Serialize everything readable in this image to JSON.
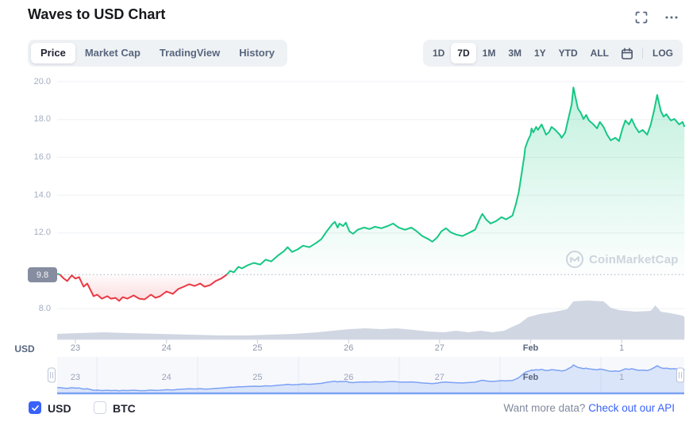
{
  "header": {
    "title": "Waves to USD Chart",
    "fullscreen_icon": "fullscreen-icon",
    "more_icon": "more-options-icon"
  },
  "tabs": {
    "items": [
      "Price",
      "Market Cap",
      "TradingView",
      "History"
    ],
    "active": "Price"
  },
  "ranges": {
    "items": [
      "1D",
      "7D",
      "1M",
      "3M",
      "1Y",
      "YTD",
      "ALL"
    ],
    "active": "7D",
    "log_label": "LOG",
    "calendar_icon": "calendar-icon"
  },
  "watermark": {
    "label": "CoinMarketCap"
  },
  "footer": {
    "currencies": [
      {
        "label": "USD",
        "checked": true
      },
      {
        "label": "BTC",
        "checked": false
      }
    ],
    "prompt": "Want more data?",
    "link_label": "Check out our API"
  },
  "colors": {
    "up": "#16c784",
    "down": "#ea3943",
    "accent_blue": "#3861fb",
    "volume": "#ced4e0",
    "nav_line": "#7ca2f4",
    "grid": "#eef0f4",
    "open_dotted": "#a9b2c4",
    "badge_bg": "#868da0"
  },
  "chart_data": {
    "type": "line",
    "title": "Waves to USD Chart",
    "unit": "USD",
    "legend_position": "none",
    "grid": true,
    "open_price": 9.8,
    "open_price_label": "9.8",
    "ylim": [
      7.4,
      20.6
    ],
    "xlim_days": [
      -0.2,
      6.69
    ],
    "y_ticks": [
      {
        "value": 20,
        "label": "20.0"
      },
      {
        "value": 18,
        "label": "18.0"
      },
      {
        "value": 16,
        "label": "16.0"
      },
      {
        "value": 14,
        "label": "14.0"
      },
      {
        "value": 12,
        "label": "12.0"
      },
      {
        "value": 8,
        "label": "8.0"
      }
    ],
    "x_ticks": [
      {
        "t": 0,
        "label": "23"
      },
      {
        "t": 1,
        "label": "24"
      },
      {
        "t": 2,
        "label": "25"
      },
      {
        "t": 3,
        "label": "26"
      },
      {
        "t": 4,
        "label": "27"
      },
      {
        "t": 5,
        "label": "Feb",
        "emphasis": true
      },
      {
        "t": 6,
        "label": "1"
      }
    ],
    "price_series": {
      "name": "WAVES/USD price",
      "points": [
        [
          -0.2,
          9.85
        ],
        [
          -0.17,
          9.8
        ],
        [
          -0.13,
          9.6
        ],
        [
          -0.09,
          9.46
        ],
        [
          -0.04,
          9.76
        ],
        [
          0.0,
          9.59
        ],
        [
          0.04,
          9.67
        ],
        [
          0.09,
          9.16
        ],
        [
          0.13,
          9.33
        ],
        [
          0.16,
          9.04
        ],
        [
          0.2,
          8.66
        ],
        [
          0.24,
          8.74
        ],
        [
          0.29,
          8.53
        ],
        [
          0.35,
          8.66
        ],
        [
          0.39,
          8.53
        ],
        [
          0.44,
          8.57
        ],
        [
          0.48,
          8.41
        ],
        [
          0.52,
          8.61
        ],
        [
          0.57,
          8.53
        ],
        [
          0.64,
          8.7
        ],
        [
          0.7,
          8.53
        ],
        [
          0.76,
          8.49
        ],
        [
          0.83,
          8.74
        ],
        [
          0.88,
          8.57
        ],
        [
          0.93,
          8.66
        ],
        [
          1.0,
          8.91
        ],
        [
          1.07,
          8.78
        ],
        [
          1.13,
          9.04
        ],
        [
          1.19,
          9.16
        ],
        [
          1.25,
          9.29
        ],
        [
          1.31,
          9.2
        ],
        [
          1.37,
          9.33
        ],
        [
          1.42,
          9.16
        ],
        [
          1.48,
          9.25
        ],
        [
          1.54,
          9.46
        ],
        [
          1.6,
          9.59
        ],
        [
          1.66,
          9.79
        ],
        [
          1.7,
          10.0
        ],
        [
          1.74,
          9.92
        ],
        [
          1.79,
          10.21
        ],
        [
          1.83,
          10.13
        ],
        [
          1.89,
          10.29
        ],
        [
          1.96,
          10.42
        ],
        [
          2.03,
          10.33
        ],
        [
          2.09,
          10.59
        ],
        [
          2.15,
          10.5
        ],
        [
          2.22,
          10.79
        ],
        [
          2.29,
          11.04
        ],
        [
          2.33,
          11.25
        ],
        [
          2.38,
          11.0
        ],
        [
          2.44,
          11.13
        ],
        [
          2.5,
          11.33
        ],
        [
          2.57,
          11.25
        ],
        [
          2.64,
          11.46
        ],
        [
          2.7,
          11.67
        ],
        [
          2.76,
          12.09
        ],
        [
          2.82,
          12.46
        ],
        [
          2.85,
          12.59
        ],
        [
          2.88,
          12.29
        ],
        [
          2.9,
          12.5
        ],
        [
          2.94,
          12.37
        ],
        [
          2.97,
          12.55
        ],
        [
          3.01,
          12.09
        ],
        [
          3.05,
          11.96
        ],
        [
          3.1,
          12.17
        ],
        [
          3.17,
          12.29
        ],
        [
          3.23,
          12.21
        ],
        [
          3.29,
          12.33
        ],
        [
          3.36,
          12.25
        ],
        [
          3.43,
          12.37
        ],
        [
          3.49,
          12.5
        ],
        [
          3.55,
          12.29
        ],
        [
          3.62,
          12.17
        ],
        [
          3.69,
          12.29
        ],
        [
          3.75,
          12.09
        ],
        [
          3.81,
          11.84
        ],
        [
          3.88,
          11.67
        ],
        [
          3.92,
          11.54
        ],
        [
          3.97,
          11.75
        ],
        [
          4.02,
          12.09
        ],
        [
          4.07,
          12.25
        ],
        [
          4.12,
          12.04
        ],
        [
          4.18,
          11.92
        ],
        [
          4.25,
          11.84
        ],
        [
          4.32,
          12.0
        ],
        [
          4.39,
          12.17
        ],
        [
          4.45,
          12.84
        ],
        [
          4.47,
          13.01
        ],
        [
          4.51,
          12.72
        ],
        [
          4.56,
          12.5
        ],
        [
          4.62,
          12.63
        ],
        [
          4.68,
          12.84
        ],
        [
          4.73,
          12.72
        ],
        [
          4.8,
          12.92
        ],
        [
          4.84,
          13.55
        ],
        [
          4.87,
          14.18
        ],
        [
          4.89,
          14.81
        ],
        [
          4.91,
          15.44
        ],
        [
          4.93,
          16.07
        ],
        [
          4.94,
          16.49
        ],
        [
          4.97,
          16.9
        ],
        [
          5.0,
          17.2
        ],
        [
          5.01,
          17.53
        ],
        [
          5.03,
          17.32
        ],
        [
          5.06,
          17.61
        ],
        [
          5.08,
          17.45
        ],
        [
          5.12,
          17.74
        ],
        [
          5.14,
          17.53
        ],
        [
          5.17,
          17.2
        ],
        [
          5.2,
          17.32
        ],
        [
          5.23,
          17.61
        ],
        [
          5.27,
          17.45
        ],
        [
          5.32,
          17.2
        ],
        [
          5.34,
          17.03
        ],
        [
          5.38,
          17.32
        ],
        [
          5.41,
          17.95
        ],
        [
          5.45,
          18.78
        ],
        [
          5.47,
          19.7
        ],
        [
          5.5,
          19.0
        ],
        [
          5.52,
          18.57
        ],
        [
          5.55,
          18.36
        ],
        [
          5.58,
          18.03
        ],
        [
          5.61,
          18.24
        ],
        [
          5.64,
          17.95
        ],
        [
          5.69,
          17.74
        ],
        [
          5.73,
          17.53
        ],
        [
          5.76,
          17.87
        ],
        [
          5.8,
          17.61
        ],
        [
          5.84,
          17.2
        ],
        [
          5.88,
          16.9
        ],
        [
          5.93,
          17.03
        ],
        [
          5.97,
          16.86
        ],
        [
          6.01,
          17.53
        ],
        [
          6.04,
          17.95
        ],
        [
          6.08,
          17.74
        ],
        [
          6.11,
          18.03
        ],
        [
          6.15,
          17.61
        ],
        [
          6.19,
          17.32
        ],
        [
          6.23,
          17.45
        ],
        [
          6.28,
          17.2
        ],
        [
          6.32,
          17.74
        ],
        [
          6.36,
          18.57
        ],
        [
          6.39,
          19.3
        ],
        [
          6.43,
          18.45
        ],
        [
          6.46,
          18.15
        ],
        [
          6.49,
          18.28
        ],
        [
          6.54,
          17.95
        ],
        [
          6.58,
          18.03
        ],
        [
          6.63,
          17.74
        ],
        [
          6.67,
          17.87
        ],
        [
          6.69,
          17.61
        ]
      ]
    },
    "volume_series": {
      "name": "volume (relative %, unlabeled axis)",
      "points": [
        [
          -0.2,
          14
        ],
        [
          0.04,
          16
        ],
        [
          0.31,
          18
        ],
        [
          0.57,
          16
        ],
        [
          0.92,
          14
        ],
        [
          1.26,
          12
        ],
        [
          1.61,
          10
        ],
        [
          1.87,
          10
        ],
        [
          2.14,
          12
        ],
        [
          2.4,
          14
        ],
        [
          2.66,
          18
        ],
        [
          2.83,
          22
        ],
        [
          3.01,
          26
        ],
        [
          3.18,
          28
        ],
        [
          3.36,
          26
        ],
        [
          3.53,
          28
        ],
        [
          3.71,
          24
        ],
        [
          3.88,
          20
        ],
        [
          4.05,
          18
        ],
        [
          4.18,
          22
        ],
        [
          4.32,
          18
        ],
        [
          4.45,
          22
        ],
        [
          4.58,
          18
        ],
        [
          4.71,
          22
        ],
        [
          4.8,
          32
        ],
        [
          4.88,
          40
        ],
        [
          4.97,
          56
        ],
        [
          5.1,
          64
        ],
        [
          5.27,
          70
        ],
        [
          5.4,
          76
        ],
        [
          5.47,
          96
        ],
        [
          5.62,
          98
        ],
        [
          5.8,
          96
        ],
        [
          5.88,
          80
        ],
        [
          5.97,
          74
        ],
        [
          6.15,
          70
        ],
        [
          6.32,
          72
        ],
        [
          6.37,
          86
        ],
        [
          6.43,
          70
        ],
        [
          6.54,
          66
        ],
        [
          6.67,
          60
        ],
        [
          6.69,
          56
        ]
      ]
    },
    "navigator": {
      "shows": "same price series, full range selected"
    }
  }
}
